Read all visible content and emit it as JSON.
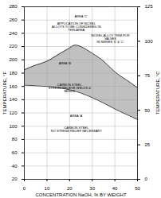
{
  "chart_data": {
    "type": "area",
    "xlabel": "CONCENTRATION NaOH, % BY WEIGHT",
    "ylabel": "TEMPERATURE, °F",
    "y2label": "TEMPERATURE, °C",
    "xlim": [
      0,
      50
    ],
    "ylim": [
      20,
      280
    ],
    "y2lim": [
      0,
      125
    ],
    "xticks": [
      0,
      10,
      20,
      30,
      40,
      50
    ],
    "yticks": [
      20,
      40,
      60,
      80,
      100,
      120,
      140,
      160,
      180,
      200,
      220,
      240,
      260,
      280
    ],
    "y2ticks": [
      0,
      25,
      50,
      75,
      100,
      125
    ],
    "grid": true,
    "color": "#c0c0c0",
    "series": [
      {
        "x": [
          0,
          5,
          10,
          15,
          20,
          22,
          25,
          30,
          35,
          40,
          45,
          50
        ],
        "values": [
          185,
          192,
          198,
          208,
          218,
          222,
          220,
          210,
          198,
          182,
          170,
          158
        ],
        "color": "#444444"
      },
      {
        "x": [
          0,
          5,
          10,
          15,
          20,
          25,
          30,
          35,
          40,
          45,
          50
        ],
        "values": [
          162,
          161,
          160,
          158,
          155,
          150,
          143,
          135,
          126,
          118,
          110
        ],
        "color": "#444444"
      }
    ],
    "annotations": [
      {
        "text": "AREA 'C'",
        "x": 25,
        "y": 265
      },
      {
        "text": "APPLICATION OF NICKEL ALLOYS TO BE CONSIDERED IN THIS AREA",
        "x": 23,
        "y": 250
      },
      {
        "text": "AREA 'B'",
        "x": 18,
        "y": 195
      },
      {
        "text": "NICKEL ALLOY TRIM FOR VALVES\nIN SERIES '6' & 'C'",
        "x": 38,
        "y": 232
      },
      {
        "text": "CARBON STEEL\nSTRESS RELIEVE WELDS & BENDS",
        "x": 20,
        "y": 158
      },
      {
        "text": "AREA 'A'",
        "x": 23,
        "y": 115
      },
      {
        "text": "CARBON STEEL\nNO STRESS RELIEF NECESSARY",
        "x": 23,
        "y": 95
      }
    ]
  }
}
